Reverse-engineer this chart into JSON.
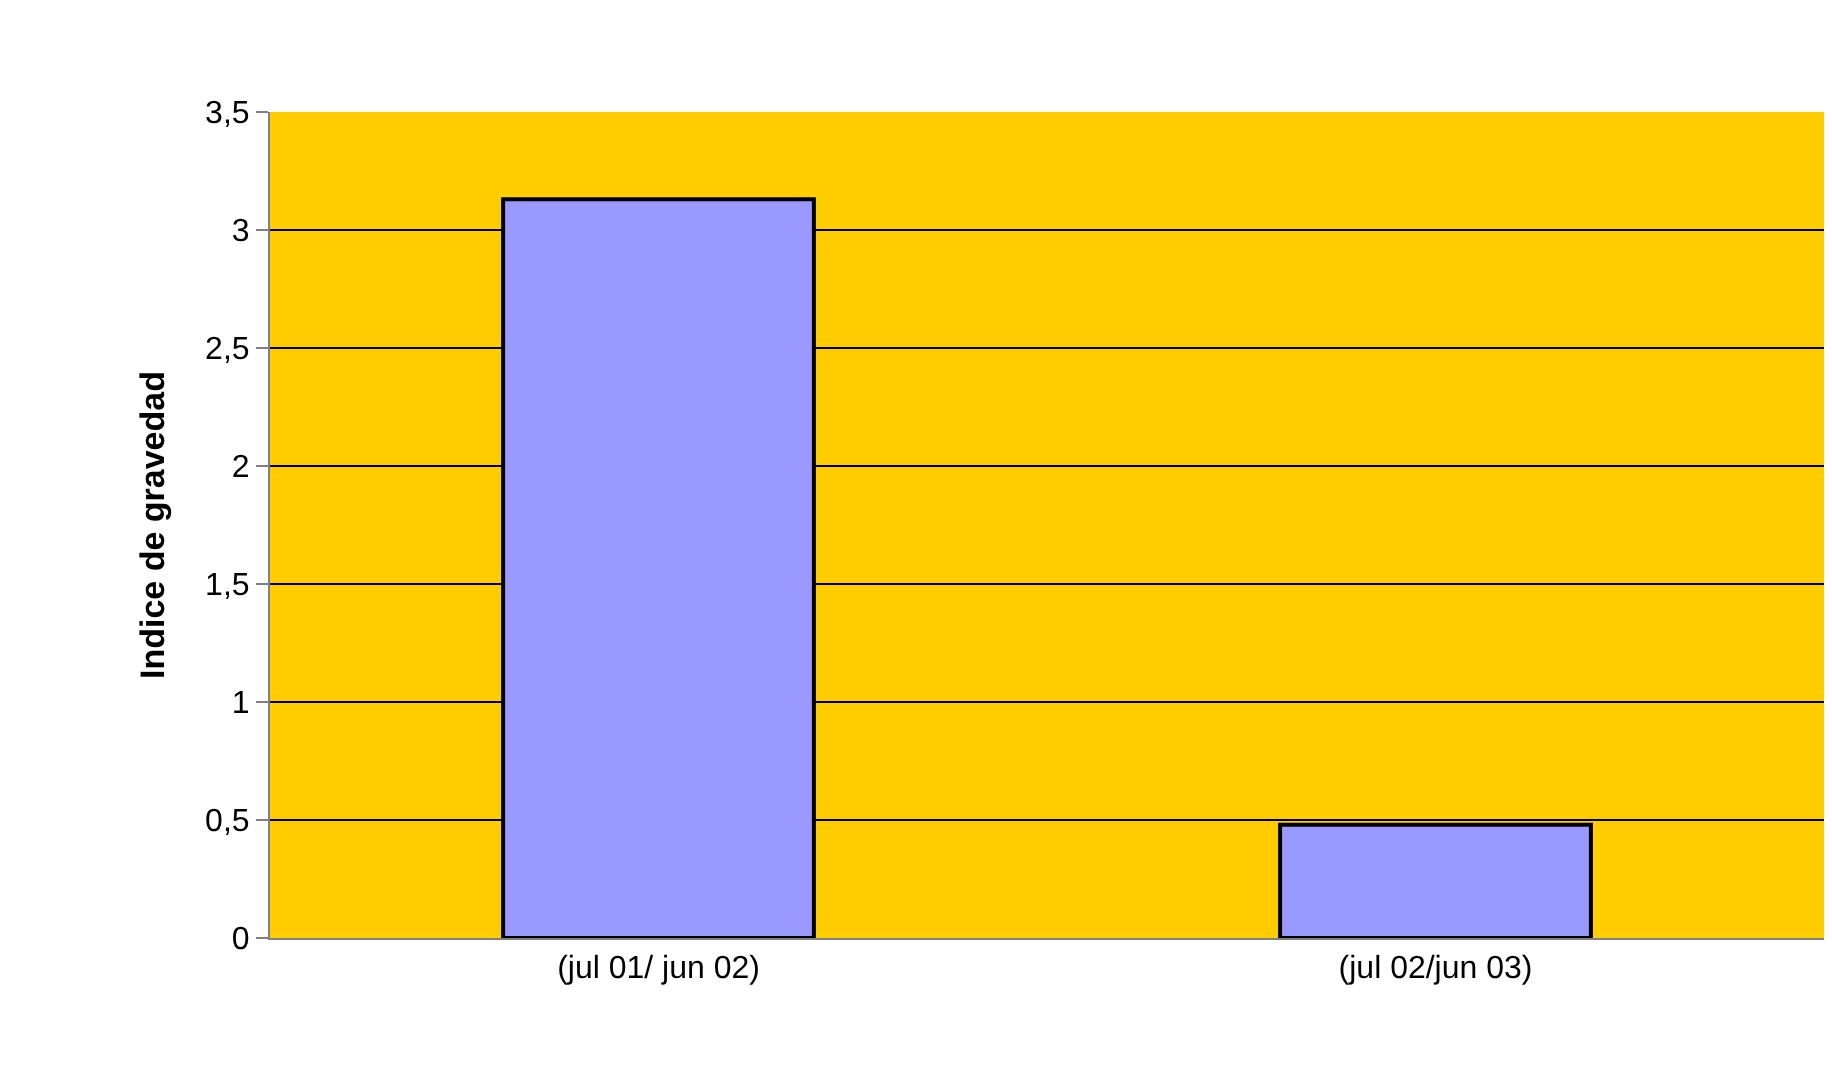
{
  "chart_data": {
    "type": "bar",
    "ylabel": "Indice de gravedad",
    "categories": [
      "(jul 01/ jun 02)",
      "(jul 02/jun 03)"
    ],
    "values": [
      3.13,
      0.48
    ],
    "color": "#9999ff",
    "ylim": [
      0,
      3.5
    ],
    "yticks": [
      {
        "value": 0,
        "label": "0"
      },
      {
        "value": 0.5,
        "label": "0,5"
      },
      {
        "value": 1,
        "label": "1"
      },
      {
        "value": 1.5,
        "label": "1,5"
      },
      {
        "value": 2,
        "label": "2"
      },
      {
        "value": 2.5,
        "label": "2,5"
      },
      {
        "value": 3,
        "label": "3"
      },
      {
        "value": 3.5,
        "label": "3,5"
      }
    ],
    "grid": "y",
    "legend": false
  }
}
